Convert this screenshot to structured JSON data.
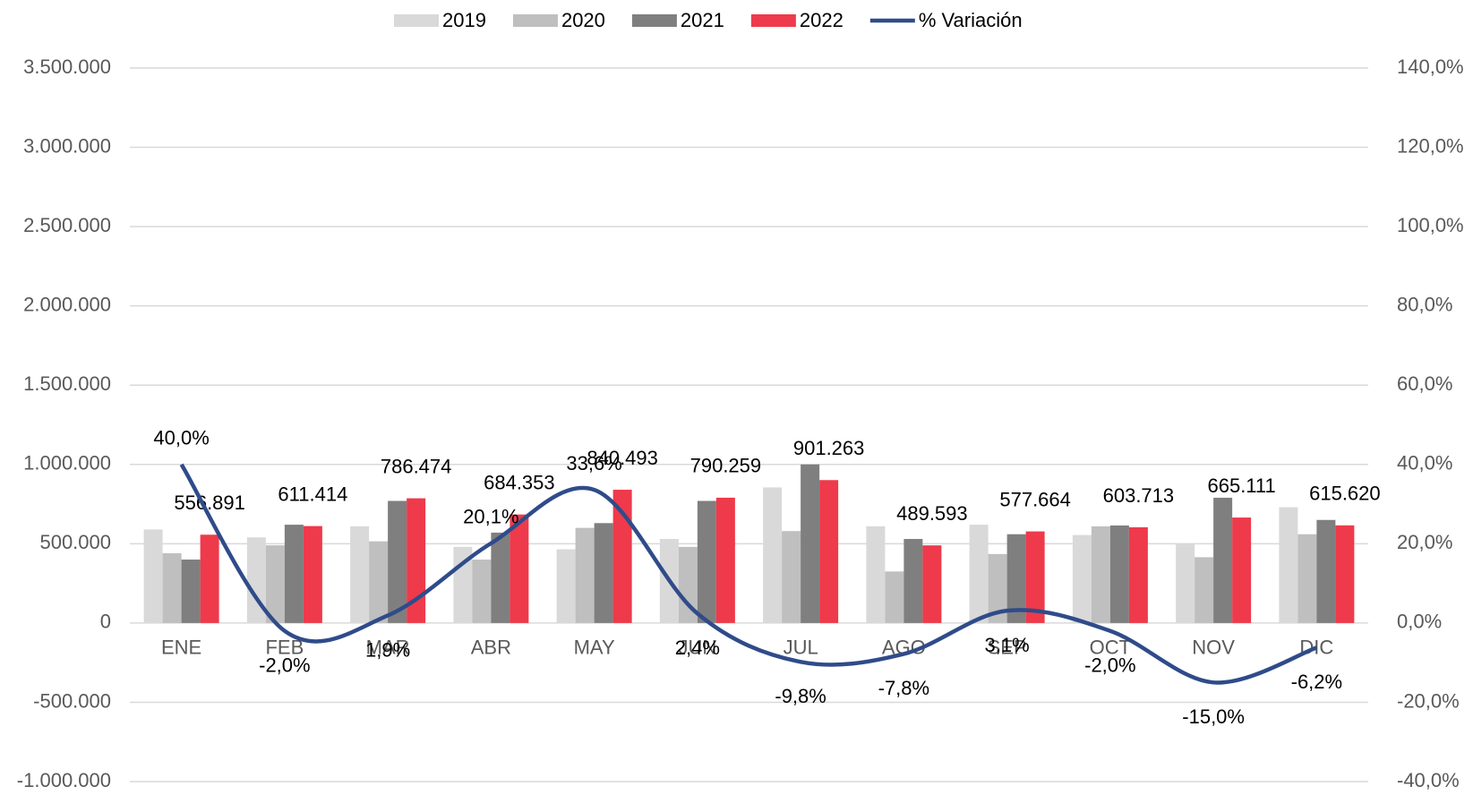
{
  "chart_data": {
    "type": "bar",
    "categories": [
      "ENE",
      "FEB",
      "MAR",
      "ABR",
      "MAY",
      "JUN",
      "JUL",
      "AGO",
      "SEP",
      "OCT",
      "NOV",
      "DIC"
    ],
    "series": [
      {
        "name": "2019",
        "color": "#d9d9d9",
        "values": [
          590000,
          540000,
          610000,
          480000,
          465000,
          530000,
          855000,
          610000,
          620000,
          555000,
          500000,
          730000
        ]
      },
      {
        "name": "2020",
        "color": "#bfbfbf",
        "values": [
          440000,
          490000,
          515000,
          400000,
          600000,
          480000,
          580000,
          325000,
          435000,
          610000,
          415000,
          560000
        ]
      },
      {
        "name": "2021",
        "color": "#7f7f7f",
        "values": [
          400000,
          620000,
          770000,
          570000,
          630000,
          770000,
          1000000,
          530000,
          560000,
          615000,
          790000,
          650000
        ]
      },
      {
        "name": "2022",
        "color": "#ee3a4b",
        "values": [
          556891,
          611414,
          786474,
          684353,
          840493,
          790259,
          901263,
          489593,
          577664,
          603713,
          665111,
          615620
        ],
        "value_labels": [
          "556.891",
          "611.414",
          "786.474",
          "684.353",
          "840.493",
          "790.259",
          "901.263",
          "489.593",
          "577.664",
          "603.713",
          "665.111",
          "615.620"
        ]
      },
      {
        "name": "% Variación",
        "type": "line",
        "axis": "y2",
        "color": "#2f4b8a",
        "values": [
          40,
          -2,
          1.9,
          20.1,
          33.6,
          2.4,
          -9.8,
          -7.8,
          3.1,
          -2,
          -15,
          -6.2
        ],
        "value_labels": [
          "40,0%",
          "-2,0%",
          "1,9%",
          "20,1%",
          "33,6%",
          "2,4%",
          "-9,8%",
          "-7,8%",
          "3,1%",
          "-2,0%",
          "-15,0%",
          "-6,2%"
        ]
      }
    ],
    "ylim": [
      -1000000,
      3500000
    ],
    "yticks": [
      {
        "value": -1000000,
        "label": "-1.000.000"
      },
      {
        "value": -500000,
        "label": "-500.000"
      },
      0,
      {
        "value": 500000,
        "label": "500.000"
      },
      {
        "value": 1000000,
        "label": "1.000.000"
      },
      {
        "value": 1500000,
        "label": "1.500.000"
      },
      {
        "value": 2000000,
        "label": "2.000.000"
      },
      {
        "value": 2500000,
        "label": "2.500.000"
      },
      {
        "value": 3000000,
        "label": "3.000.000"
      },
      {
        "value": 3500000,
        "label": "3.500.000"
      }
    ],
    "y2lim": [
      -40,
      140
    ],
    "y2ticks": [
      {
        "value": -40,
        "label": "-40,0%"
      },
      {
        "value": -20,
        "label": "-20,0%"
      },
      {
        "value": 0,
        "label": "0,0%"
      },
      {
        "value": 20,
        "label": "20,0%"
      },
      {
        "value": 40,
        "label": "40,0%"
      },
      {
        "value": 60,
        "label": "60,0%"
      },
      {
        "value": 80,
        "label": "80,0%"
      },
      {
        "value": 100,
        "label": "100,0%"
      },
      {
        "value": 120,
        "label": "120,0%"
      },
      {
        "value": 140,
        "label": "140,0%"
      }
    ],
    "grid": true,
    "legend": "top"
  }
}
